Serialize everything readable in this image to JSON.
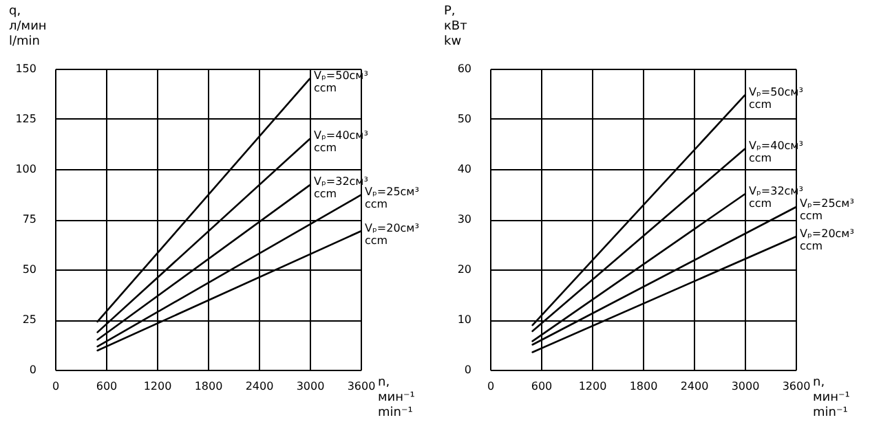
{
  "chart_data": [
    {
      "type": "line",
      "xlabel": "n, мин⁻¹ min⁻¹",
      "ylabel": "q, л/мин l/min",
      "xlim": [
        0,
        3600
      ],
      "xticks": [
        0,
        600,
        1200,
        1800,
        2400,
        3000,
        3600
      ],
      "ylim": [
        0,
        150
      ],
      "yticks": [
        0,
        25,
        50,
        75,
        100,
        125,
        150
      ],
      "grid": true,
      "legend": false,
      "series": [
        {
          "name": "Vₚ=50см³ ccm",
          "color": "#000000",
          "x": [
            500,
            3000
          ],
          "values": [
            24,
            145
          ]
        },
        {
          "name": "Vₚ=40см³ ccm",
          "color": "#000000",
          "x": [
            500,
            3000
          ],
          "values": [
            18.7,
            115
          ]
        },
        {
          "name": "Vₚ=32см³ ccm",
          "color": "#000000",
          "x": [
            500,
            3000
          ],
          "values": [
            15,
            92
          ]
        },
        {
          "name": "Vₚ=25см³ ccm",
          "color": "#000000",
          "x": [
            500,
            3600
          ],
          "values": [
            11.6,
            87
          ]
        },
        {
          "name": "Vₚ=20см³ ccm",
          "color": "#000000",
          "x": [
            500,
            3600
          ],
          "values": [
            9.6,
            69
          ]
        }
      ]
    },
    {
      "type": "line",
      "xlabel": "n, мин⁻¹ min⁻¹",
      "ylabel": "P, кВт kw",
      "xlim": [
        0,
        3600
      ],
      "xticks": [
        0,
        600,
        1200,
        1800,
        2400,
        3000,
        3600
      ],
      "ylim": [
        0,
        60
      ],
      "yticks": [
        0,
        10,
        20,
        30,
        40,
        50,
        60
      ],
      "grid": true,
      "legend": false,
      "series": [
        {
          "name": "Vₚ=50см³ ccm",
          "color": "#000000",
          "x": [
            500,
            3000
          ],
          "values": [
            8.9,
            54.7
          ]
        },
        {
          "name": "Vₚ=40см³ ccm",
          "color": "#000000",
          "x": [
            500,
            3000
          ],
          "values": [
            7.7,
            44
          ]
        },
        {
          "name": "Vₚ=32см³ ccm",
          "color": "#000000",
          "x": [
            500,
            3000
          ],
          "values": [
            5.7,
            35
          ]
        },
        {
          "name": "Vₚ=25см³ ccm",
          "color": "#000000",
          "x": [
            500,
            3600
          ],
          "values": [
            5,
            32.4
          ]
        },
        {
          "name": "Vₚ=20см³ ccm",
          "color": "#000000",
          "x": [
            500,
            3600
          ],
          "values": [
            3.5,
            26.5
          ]
        }
      ]
    }
  ]
}
